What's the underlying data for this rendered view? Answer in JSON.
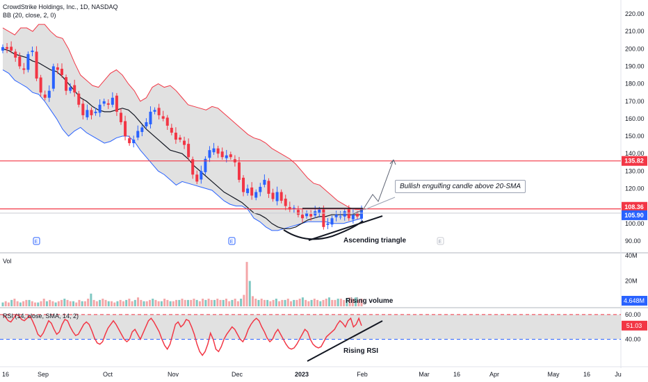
{
  "header": {
    "title": "CrowdStrike Holdings, Inc., 1D, NASDAQ",
    "bb_indicator": "BB (20, close, 2, 0)",
    "vol_indicator": "Vol",
    "rsi_indicator": "RSI (14, close, SMA, 14, 2)"
  },
  "colors": {
    "up": "#2962ff",
    "down": "#f23645",
    "bb_fill": "#d7d7d7",
    "bb_upper": "#f23645",
    "bb_lower": "#2962ff",
    "bb_mid": "#131722",
    "vol_up": "#7fc8c2",
    "vol_down": "#f4a6a8",
    "rsi_line": "#f23645",
    "rsi_band": "#d7d7d7"
  },
  "annotations": {
    "callout": "Bullish engulfing candle above 20-SMA",
    "triangle": "Ascending triangle",
    "volume": "Rising volume",
    "rsi": "Rising RSI"
  },
  "chart_data": [
    {
      "type": "candlestick",
      "title": "CrowdStrike Holdings, Inc., 1D, NASDAQ",
      "ylim": [
        84,
        224
      ],
      "y_ticks": [
        "220.00",
        "210.00",
        "200.00",
        "190.00",
        "180.00",
        "170.00",
        "160.00",
        "150.00",
        "140.00",
        "130.00",
        "120.00",
        "110.00",
        "100.00",
        "90.00"
      ],
      "price_labels": [
        {
          "value": 135.82,
          "label": "135.82"
        },
        {
          "value": 108.36,
          "label": "108.36"
        },
        {
          "value": 105.9,
          "label": "105.90"
        }
      ],
      "horizontal_lines": [
        135.82,
        108.36,
        105.9
      ],
      "x_labels": [
        "16",
        "Sep",
        "Oct",
        "Nov",
        "Dec",
        "2023",
        "Feb",
        "Mar",
        "16",
        "Apr",
        "May",
        "16",
        "Ju"
      ],
      "closes": [
        201,
        200,
        199,
        195,
        190,
        188,
        197,
        199,
        183,
        175,
        172,
        176,
        190,
        188,
        185,
        176,
        178,
        175,
        168,
        162,
        165,
        162,
        164,
        168,
        170,
        168,
        172,
        164,
        158,
        150,
        146,
        148,
        153,
        155,
        158,
        164,
        165,
        162,
        160,
        156,
        152,
        148,
        148,
        145,
        138,
        128,
        124,
        130,
        137,
        142,
        143,
        140,
        138,
        139,
        138,
        135,
        125,
        118,
        120,
        116,
        118,
        121,
        125,
        117,
        114,
        118,
        113,
        110,
        108,
        109,
        105,
        103,
        106,
        104,
        107,
        108,
        98,
        100,
        103,
        105,
        104,
        107,
        103,
        105,
        104,
        108
      ],
      "bb_upper": [
        212,
        210,
        208,
        212,
        212,
        210,
        214,
        214,
        210,
        207,
        206,
        200,
        192,
        185,
        182,
        179,
        178,
        182,
        186,
        188,
        185,
        180,
        176,
        170,
        172,
        178,
        180,
        178,
        179,
        176,
        172,
        168,
        167,
        166,
        165,
        167,
        166,
        163,
        160,
        157,
        154,
        151,
        149,
        148,
        146,
        143,
        141,
        139,
        137,
        134,
        130,
        126,
        123,
        122,
        119,
        116,
        113,
        111,
        109,
        108,
        108
      ],
      "bb_lower": [
        188,
        186,
        182,
        180,
        178,
        175,
        174,
        170,
        165,
        160,
        154,
        150,
        153,
        155,
        152,
        150,
        148,
        146,
        147,
        149,
        150,
        150,
        147,
        142,
        138,
        134,
        130,
        128,
        125,
        122,
        124,
        123,
        122,
        121,
        120,
        119,
        116,
        113,
        111,
        110,
        110,
        108,
        103,
        101,
        98,
        96,
        96,
        97,
        98,
        99,
        100,
        101,
        101,
        101,
        101,
        100,
        100,
        100,
        101,
        102,
        103
      ],
      "bb_mid": [
        200,
        199,
        197,
        196,
        195,
        193,
        192,
        190,
        188,
        187,
        184,
        180,
        176,
        172,
        170,
        167,
        165,
        164,
        164,
        165,
        166,
        165,
        162,
        158,
        154,
        151,
        148,
        145,
        142,
        141,
        140,
        137,
        133,
        130,
        127,
        124,
        121,
        118,
        116,
        114,
        112,
        109,
        106,
        105,
        103,
        100,
        98,
        97,
        97,
        98,
        100,
        102,
        103,
        104,
        104,
        105,
        105,
        105,
        105,
        105,
        105
      ],
      "resistance_level": 108.36
    },
    {
      "type": "bar",
      "title": "Vol",
      "y_ticks": [
        "40M",
        "20M"
      ],
      "last_value_label": "4.648M",
      "ylim": [
        0,
        40
      ],
      "values": [
        3,
        4,
        3,
        5,
        6,
        4,
        3,
        4,
        5,
        5,
        4,
        3,
        3,
        4,
        6,
        4,
        5,
        4,
        3,
        4,
        5,
        6,
        5,
        4,
        4,
        3,
        5,
        4,
        4,
        6,
        10,
        5,
        4,
        5,
        6,
        5,
        4,
        4,
        3,
        4,
        5,
        4,
        5,
        6,
        4,
        5,
        7,
        5,
        4,
        4,
        5,
        6,
        5,
        4,
        4,
        6,
        5,
        4,
        4,
        5,
        5,
        6,
        5,
        5,
        5,
        6,
        5,
        4,
        6,
        5,
        6,
        5,
        5,
        6,
        5,
        5,
        6,
        4,
        5,
        6,
        4,
        6,
        9,
        35,
        20,
        8,
        6,
        5,
        6,
        5,
        5,
        4,
        5,
        6,
        4,
        5,
        5,
        6,
        4,
        5,
        5,
        6,
        7,
        5,
        4,
        5,
        6,
        5,
        4,
        5,
        6,
        7,
        5,
        5,
        6,
        6,
        5,
        6,
        7,
        6,
        7,
        5,
        6
      ]
    },
    {
      "type": "line",
      "title": "RSI (14, close, SMA, 14, 2)",
      "ylim": [
        20,
        65
      ],
      "y_ticks": [
        "60.00",
        "40.00"
      ],
      "upper_band": 60,
      "lower_band": 40,
      "last_value_label": "51.03",
      "values": [
        60,
        58,
        55,
        54,
        57,
        60,
        59,
        56,
        55,
        57,
        59,
        55,
        50,
        44,
        42,
        45,
        50,
        55,
        53,
        48,
        44,
        46,
        52,
        56,
        55,
        50,
        46,
        43,
        44,
        48,
        52,
        54,
        52,
        47,
        41,
        37,
        36,
        38,
        44,
        49,
        52,
        55,
        52,
        48,
        44,
        40,
        38,
        40,
        46,
        48,
        44,
        40,
        45,
        50,
        55,
        57,
        54,
        50,
        46,
        40,
        35,
        32,
        36,
        44,
        52,
        54,
        50,
        52,
        56,
        55,
        50,
        44,
        36,
        30,
        27,
        30,
        36,
        45,
        40,
        32,
        30,
        34,
        40,
        44,
        47,
        50,
        48,
        44,
        40,
        38,
        42,
        48,
        52,
        55,
        57,
        55,
        50,
        46,
        41,
        38,
        40,
        45,
        48,
        44,
        40,
        36,
        33,
        32,
        33,
        36,
        40,
        44,
        48,
        46,
        40,
        36,
        34,
        33,
        34,
        38,
        42,
        44,
        46,
        48,
        52,
        55,
        53,
        50,
        55,
        57,
        50,
        52,
        57,
        51
      ]
    }
  ]
}
